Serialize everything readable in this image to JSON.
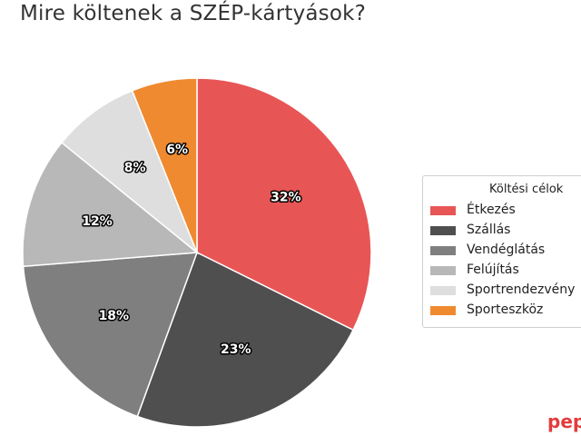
{
  "chart_data": {
    "type": "pie",
    "title": "Mire költenek a SZÉP-kártyások?",
    "legend_title": "Költési célok",
    "legend_position": "right",
    "start_angle_deg": 90,
    "direction": "clockwise",
    "slices": [
      {
        "label": "Étkezés",
        "value": 32,
        "display": "32%",
        "color": "#e85555"
      },
      {
        "label": "Szállás",
        "value": 23,
        "display": "23%",
        "color": "#4f4f4f"
      },
      {
        "label": "Vendéglátás",
        "value": 18,
        "display": "18%",
        "color": "#7f7f7f"
      },
      {
        "label": "Felújítás",
        "value": 12,
        "display": "12%",
        "color": "#b8b8b8"
      },
      {
        "label": "Sportrendezvény",
        "value": 8,
        "display": "8%",
        "color": "#dedede"
      },
      {
        "label": "Sporteszköz",
        "value": 6,
        "display": "6%",
        "color": "#f08a30"
      }
    ]
  },
  "brand": "pep"
}
